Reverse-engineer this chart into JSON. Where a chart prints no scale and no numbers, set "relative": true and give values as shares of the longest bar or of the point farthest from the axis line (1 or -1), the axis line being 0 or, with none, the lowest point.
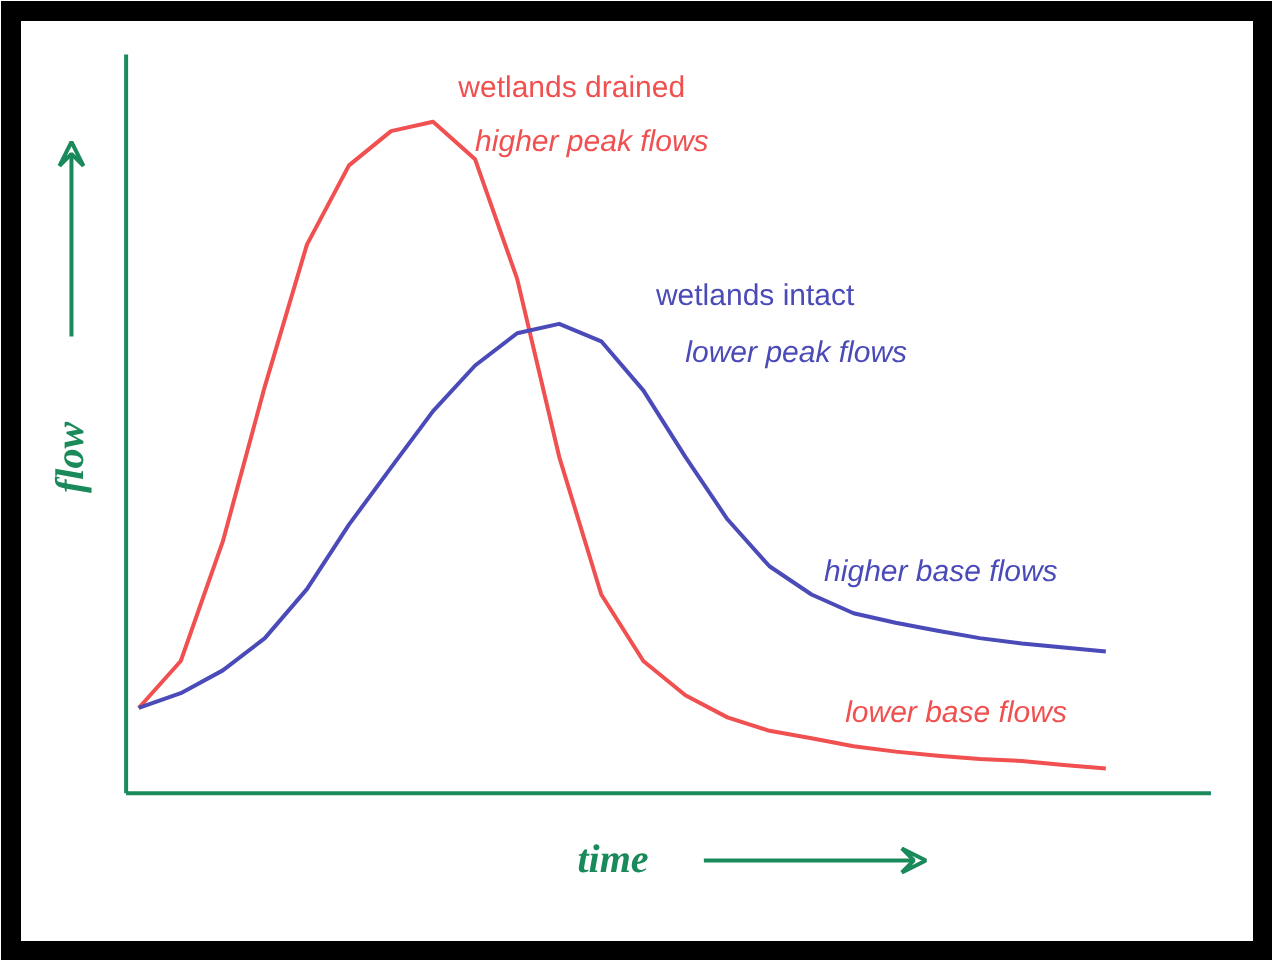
{
  "chart_data": {
    "type": "line",
    "relative": true,
    "xlabel": "time",
    "ylabel": "flow",
    "categories": [
      null,
      null,
      null,
      null,
      null,
      null,
      null,
      null,
      null,
      null,
      null,
      null,
      null,
      null,
      null,
      null,
      null,
      null,
      null,
      null,
      null,
      null,
      null,
      null
    ],
    "series": [
      {
        "name": "wetlands drained",
        "color": "#f05050",
        "values": [
          0.127,
          0.197,
          0.375,
          0.606,
          0.817,
          0.935,
          0.986,
          1,
          0.944,
          0.766,
          0.501,
          0.296,
          0.197,
          0.146,
          0.113,
          0.093,
          0.082,
          0.07,
          0.062,
          0.056,
          0.051,
          0.048,
          0.042,
          0.037
        ]
      },
      {
        "name": "wetlands intact",
        "color": "#4a4ab8",
        "values": [
          0.127,
          0.149,
          0.183,
          0.231,
          0.304,
          0.4,
          0.485,
          0.569,
          0.637,
          0.685,
          0.699,
          0.673,
          0.6,
          0.501,
          0.408,
          0.338,
          0.296,
          0.268,
          0.254,
          0.242,
          0.231,
          0.223,
          0.217,
          0.211
        ]
      }
    ],
    "annotations": [
      "higher peak flows",
      "lower peak flows",
      "higher base flows",
      "lower base flows"
    ],
    "grid": false,
    "marker": "none",
    "line_style": "solid"
  }
}
